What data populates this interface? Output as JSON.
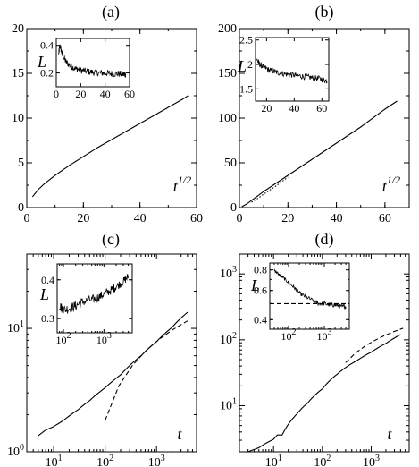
{
  "chart_data": [
    {
      "panel": "(a)",
      "type": "line",
      "xlabel": "t^{1/2}",
      "ylabel": "",
      "xscale": "linear",
      "yscale": "linear",
      "xlim": [
        0,
        60
      ],
      "ylim": [
        0,
        20
      ],
      "xticks": [
        "0",
        "20",
        "40",
        "60"
      ],
      "yticks": [
        "0",
        "5",
        "10",
        "15",
        "20"
      ],
      "series": [
        {
          "style": "solid",
          "x": [
            2,
            4,
            6,
            8,
            10,
            15,
            20,
            25,
            30,
            35,
            40,
            45,
            50,
            55,
            57
          ],
          "y": [
            1.2,
            2.0,
            2.6,
            3.1,
            3.6,
            4.7,
            5.7,
            6.7,
            7.6,
            8.5,
            9.4,
            10.3,
            11.2,
            12.1,
            12.5
          ]
        }
      ],
      "inset": {
        "ylabel": "L",
        "xlim": [
          0,
          60
        ],
        "ylim": [
          0.1,
          0.45
        ],
        "xticks": [
          "0",
          "20",
          "40",
          "60"
        ],
        "yticks": [
          "0.2",
          "0.4"
        ],
        "series": [
          {
            "style": "solid",
            "noise": 0.025,
            "x": [
              2,
              3,
              5,
              8,
              12,
              16,
              20,
              25,
              30,
              35,
              40,
              45,
              50,
              55,
              57
            ],
            "y": [
              0.34,
              0.4,
              0.33,
              0.28,
              0.25,
              0.23,
              0.22,
              0.21,
              0.205,
              0.2,
              0.2,
              0.195,
              0.195,
              0.19,
              0.19
            ]
          }
        ]
      }
    },
    {
      "panel": "(b)",
      "type": "line",
      "xlabel": "t^{1/2}",
      "ylabel": "",
      "xscale": "linear",
      "yscale": "linear",
      "xlim": [
        0,
        70
      ],
      "ylim": [
        0,
        200
      ],
      "xticks": [
        "0",
        "20",
        "40",
        "60"
      ],
      "yticks": [
        "0",
        "50",
        "100",
        "150",
        "200"
      ],
      "series": [
        {
          "style": "solid",
          "x": [
            1,
            3,
            5,
            8,
            10,
            15,
            20,
            25,
            30,
            35,
            40,
            45,
            50,
            55,
            60,
            65
          ],
          "y": [
            1,
            4,
            8,
            14,
            18,
            27,
            36,
            45,
            54,
            63,
            72,
            81,
            90,
            100,
            110,
            119
          ]
        },
        {
          "style": "dotted",
          "x": [
            5,
            8,
            10,
            15,
            20
          ],
          "y": [
            6,
            11,
            15,
            24,
            34
          ]
        }
      ],
      "inset": {
        "ylabel": "L",
        "xlim": [
          12,
          65
        ],
        "ylim": [
          1.25,
          2.55
        ],
        "xticks": [
          "20",
          "40",
          "60"
        ],
        "yticks": [
          "1.5",
          "2",
          "2.5"
        ],
        "series": [
          {
            "style": "solid",
            "noise": 0.06,
            "x": [
              13,
              15,
              18,
              22,
              26,
              30,
              35,
              40,
              45,
              50,
              55,
              60,
              64
            ],
            "y": [
              2.1,
              2.0,
              1.95,
              1.88,
              1.85,
              1.82,
              1.8,
              1.78,
              1.76,
              1.74,
              1.72,
              1.7,
              1.66
            ]
          }
        ]
      }
    },
    {
      "panel": "(c)",
      "type": "line",
      "xlabel": "t",
      "ylabel": "",
      "xscale": "log",
      "yscale": "log",
      "xlim": [
        3,
        6000
      ],
      "ylim": [
        1,
        40
      ],
      "xticks": [
        "10^1",
        "10^2",
        "10^3"
      ],
      "yticks": [
        "10^0",
        "10^1"
      ],
      "series": [
        {
          "style": "solid",
          "x": [
            5,
            7,
            10,
            15,
            20,
            30,
            50,
            100,
            200,
            500,
            1000,
            2000,
            4000
          ],
          "y": [
            1.35,
            1.5,
            1.6,
            1.78,
            1.95,
            2.2,
            2.6,
            3.3,
            4.2,
            6.0,
            7.8,
            10.2,
            13.5
          ]
        },
        {
          "style": "dashed",
          "x": [
            100,
            4000
          ],
          "y": [
            1.8,
            11.5
          ]
        }
      ],
      "inset": {
        "ylabel": "L",
        "xlim": [
          70,
          5000
        ],
        "ylim": [
          0.27,
          0.45
        ],
        "xticks": [
          "10^2",
          "10^3"
        ],
        "yticks": [
          "0.3",
          "0.4"
        ],
        "series": [
          {
            "style": "solid",
            "noise": 0.012,
            "x": [
              80,
              100,
              150,
              200,
              300,
              500,
              700,
              1000,
              1500,
              2000,
              3000,
              4000
            ],
            "y": [
              0.33,
              0.32,
              0.325,
              0.33,
              0.34,
              0.345,
              0.35,
              0.36,
              0.37,
              0.38,
              0.395,
              0.41
            ]
          }
        ]
      }
    },
    {
      "panel": "(d)",
      "type": "line",
      "xlabel": "t",
      "ylabel": "",
      "xscale": "log",
      "yscale": "log",
      "xlim": [
        2,
        6000
      ],
      "ylim": [
        2,
        2000
      ],
      "xticks": [
        "10^1",
        "10^2",
        "10^3"
      ],
      "yticks": [
        "10^1",
        "10^2",
        "10^3"
      ],
      "series": [
        {
          "style": "solid",
          "x": [
            3,
            5,
            7,
            10,
            12,
            15,
            20,
            30,
            50,
            100,
            200,
            300,
            500,
            1000,
            2000,
            4000
          ],
          "y": [
            2,
            2.3,
            2.7,
            3.1,
            3.6,
            3.6,
            5.2,
            7.5,
            11,
            18,
            30,
            38,
            48,
            65,
            88,
            120
          ]
        },
        {
          "style": "dashed",
          "x": [
            300,
            4500
          ],
          "y": [
            45,
            150
          ]
        }
      ],
      "inset": {
        "ylabel": "L",
        "xlim": [
          30,
          5000
        ],
        "ylim": [
          0.35,
          0.88
        ],
        "xticks": [
          "10^2",
          "10^3"
        ],
        "yticks": [
          "0.4",
          "0.6",
          "0.8"
        ],
        "series": [
          {
            "style": "solid",
            "noise": 0.015,
            "x": [
              40,
              50,
              70,
              100,
              150,
              200,
              300,
              500,
              700,
              1000,
              1500,
              2000,
              3000,
              4000
            ],
            "y": [
              0.8,
              0.76,
              0.72,
              0.67,
              0.62,
              0.58,
              0.55,
              0.52,
              0.5,
              0.5,
              0.49,
              0.49,
              0.48,
              0.48
            ]
          },
          {
            "style": "dashed",
            "x": [
              30,
              5000
            ],
            "y": [
              0.5,
              0.5
            ]
          }
        ]
      }
    }
  ]
}
